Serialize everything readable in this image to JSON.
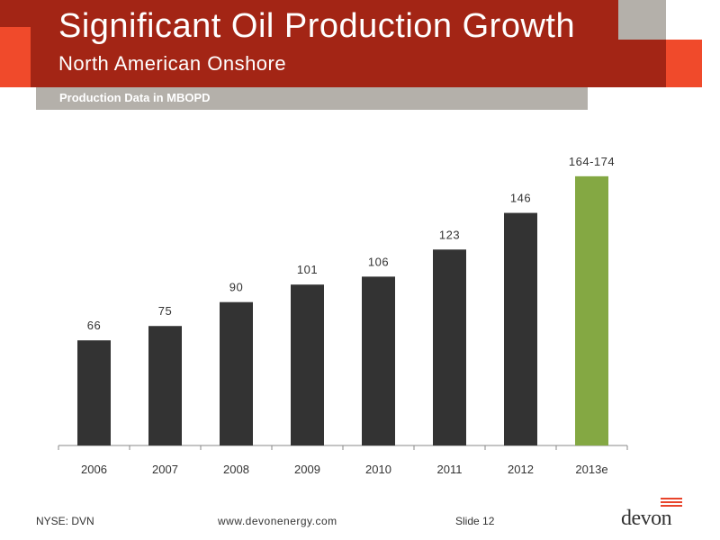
{
  "header": {
    "title": "Significant Oil Production Growth",
    "subtitle": "North American Onshore",
    "section_label": "Production Data in MBOPD"
  },
  "colors": {
    "header_red": "#a32515",
    "accent_orange": "#f04a2b",
    "section_grey": "#b4b0aa",
    "bar_dark": "#333333",
    "bar_estimate": "#84a843"
  },
  "chart_data": {
    "type": "bar",
    "title": "",
    "xlabel": "",
    "ylabel": "",
    "categories": [
      "2006",
      "2007",
      "2008",
      "2009",
      "2010",
      "2011",
      "2012",
      "2013e"
    ],
    "values": [
      66,
      75,
      90,
      101,
      106,
      123,
      146,
      169
    ],
    "data_labels": [
      "66",
      "75",
      "90",
      "101",
      "106",
      "123",
      "146",
      "164-174"
    ],
    "highlight": {
      "index": 7,
      "range": [
        164,
        174
      ],
      "color": "#84a843"
    },
    "ylim": [
      0,
      174
    ],
    "grid": false,
    "legend": "none"
  },
  "footer": {
    "ticker": "NYSE: DVN",
    "website": "www.devonenergy.com",
    "slide": "Slide 12",
    "logo_text": "devon"
  }
}
